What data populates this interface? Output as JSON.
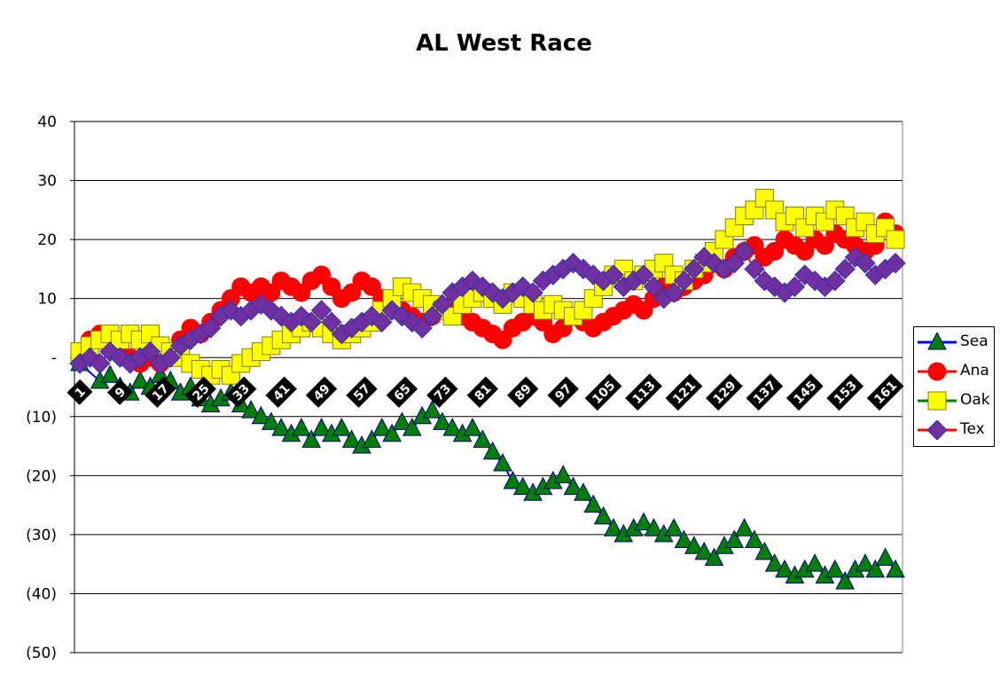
{
  "chart_data": {
    "type": "line",
    "title": "AL West Race",
    "xlabel": "",
    "ylabel": "",
    "xlim": [
      1,
      163
    ],
    "ylim": [
      -50,
      40
    ],
    "y_ticks": [
      40,
      30,
      20,
      10,
      0,
      -10,
      -20,
      -30,
      -40,
      -50
    ],
    "y_tick_labels": [
      "40",
      "30",
      "20",
      "10",
      "-",
      "(10)",
      "(20)",
      "(30)",
      "(40)",
      "(50)"
    ],
    "x_tick_labels": [
      "1",
      "9",
      "17",
      "25",
      "33",
      "41",
      "49",
      "57",
      "65",
      "73",
      "81",
      "89",
      "97",
      "105",
      "113",
      "121",
      "129",
      "137",
      "145",
      "153",
      "161"
    ],
    "x_tick_values": [
      1,
      9,
      17,
      25,
      33,
      41,
      49,
      57,
      65,
      73,
      81,
      89,
      97,
      105,
      113,
      121,
      129,
      137,
      145,
      153,
      161
    ],
    "grid": true,
    "legend_position": "right",
    "series": [
      {
        "name": "Sea",
        "line_color": "#0000ff",
        "marker": "triangle",
        "marker_fill": "#008000",
        "marker_stroke": "#000080",
        "x": [
          1,
          5,
          7,
          9,
          11,
          13,
          15,
          17,
          19,
          21,
          23,
          25,
          27,
          29,
          31,
          33,
          35,
          37,
          39,
          41,
          43,
          45,
          47,
          49,
          51,
          53,
          55,
          57,
          59,
          61,
          63,
          65,
          67,
          69,
          71,
          73,
          75,
          77,
          79,
          81,
          83,
          85,
          87,
          89,
          91,
          93,
          95,
          97,
          99,
          101,
          103,
          105,
          107,
          109,
          111,
          113,
          115,
          117,
          119,
          121,
          123,
          125,
          127,
          129,
          131,
          133,
          135,
          137,
          139,
          141,
          143,
          145,
          147,
          149,
          151,
          153,
          155,
          157,
          159,
          161,
          163
        ],
        "values": [
          -1,
          -4,
          -3,
          -5,
          -6,
          -4,
          -5,
          -3,
          -4,
          -6,
          -5,
          -7,
          -8,
          -7,
          -6,
          -8,
          -9,
          -10,
          -11,
          -12,
          -13,
          -12,
          -14,
          -12,
          -13,
          -12,
          -14,
          -15,
          -14,
          -12,
          -13,
          -11,
          -12,
          -10,
          -9,
          -11,
          -12,
          -13,
          -12,
          -14,
          -16,
          -18,
          -21,
          -22,
          -23,
          -22,
          -21,
          -20,
          -22,
          -23,
          -25,
          -27,
          -29,
          -30,
          -29,
          -28,
          -29,
          -30,
          -29,
          -31,
          -32,
          -33,
          -34,
          -32,
          -31,
          -29,
          -31,
          -33,
          -35,
          -36,
          -37,
          -36,
          -35,
          -37,
          -36,
          -38,
          -36,
          -35,
          -36,
          -34,
          -36
        ]
      },
      {
        "name": "Ana",
        "line_color": "#ff0000",
        "marker": "circle",
        "marker_fill": "#ff0000",
        "marker_stroke": "#ff0000",
        "x": [
          1,
          3,
          5,
          7,
          9,
          11,
          13,
          15,
          17,
          19,
          21,
          23,
          25,
          27,
          29,
          31,
          33,
          35,
          37,
          39,
          41,
          43,
          45,
          47,
          49,
          51,
          53,
          55,
          57,
          59,
          61,
          63,
          65,
          67,
          69,
          71,
          73,
          75,
          77,
          79,
          81,
          83,
          85,
          87,
          89,
          91,
          93,
          95,
          97,
          99,
          101,
          103,
          105,
          107,
          109,
          111,
          113,
          115,
          117,
          119,
          121,
          123,
          125,
          127,
          129,
          131,
          133,
          135,
          137,
          139,
          141,
          143,
          145,
          147,
          149,
          151,
          153,
          155,
          157,
          159,
          161,
          163
        ],
        "values": [
          1,
          3,
          4,
          2,
          1,
          0,
          -1,
          0,
          -1,
          1,
          3,
          5,
          4,
          6,
          8,
          10,
          12,
          11,
          12,
          11,
          13,
          12,
          11,
          13,
          14,
          12,
          10,
          11,
          13,
          12,
          10,
          9,
          8,
          7,
          6,
          7,
          8,
          9,
          7,
          6,
          5,
          4,
          3,
          5,
          6,
          7,
          6,
          4,
          5,
          7,
          6,
          5,
          6,
          7,
          8,
          9,
          8,
          10,
          12,
          11,
          12,
          13,
          14,
          16,
          15,
          17,
          18,
          19,
          17,
          18,
          20,
          19,
          18,
          20,
          19,
          21,
          20,
          19,
          18,
          19,
          23,
          21
        ]
      },
      {
        "name": "Oak",
        "line_color": "#008000",
        "marker": "square",
        "marker_fill": "#ffff00",
        "marker_stroke": "#808000",
        "x": [
          1,
          3,
          5,
          7,
          9,
          11,
          13,
          15,
          17,
          19,
          21,
          23,
          25,
          27,
          29,
          31,
          33,
          35,
          37,
          39,
          41,
          43,
          45,
          47,
          49,
          51,
          53,
          55,
          57,
          59,
          61,
          63,
          65,
          67,
          69,
          71,
          73,
          75,
          77,
          79,
          81,
          83,
          85,
          87,
          89,
          91,
          93,
          95,
          97,
          99,
          101,
          103,
          105,
          107,
          109,
          111,
          113,
          115,
          117,
          119,
          121,
          123,
          125,
          127,
          129,
          131,
          133,
          135,
          137,
          139,
          141,
          143,
          145,
          147,
          149,
          151,
          153,
          155,
          157,
          159,
          161,
          163
        ],
        "values": [
          1,
          2,
          3,
          4,
          3,
          4,
          3,
          4,
          2,
          1,
          0,
          -1,
          -2,
          -3,
          -2,
          -3,
          -1,
          0,
          1,
          2,
          3,
          4,
          5,
          6,
          5,
          4,
          3,
          4,
          5,
          6,
          8,
          10,
          12,
          11,
          10,
          9,
          8,
          7,
          9,
          10,
          11,
          10,
          9,
          11,
          10,
          9,
          8,
          9,
          8,
          7,
          8,
          10,
          12,
          14,
          15,
          13,
          14,
          15,
          16,
          14,
          13,
          15,
          16,
          18,
          20,
          22,
          24,
          25,
          27,
          25,
          23,
          24,
          22,
          24,
          23,
          25,
          24,
          22,
          23,
          21,
          22,
          20
        ]
      },
      {
        "name": "Tex",
        "line_color": "#ff0000",
        "marker": "diamond",
        "marker_fill": "#7030a0",
        "marker_stroke": "#3030b0",
        "x": [
          1,
          3,
          5,
          7,
          9,
          11,
          13,
          15,
          17,
          19,
          21,
          23,
          25,
          27,
          29,
          31,
          33,
          35,
          37,
          39,
          41,
          43,
          45,
          47,
          49,
          51,
          53,
          55,
          57,
          59,
          61,
          63,
          65,
          67,
          69,
          71,
          73,
          75,
          77,
          79,
          81,
          83,
          85,
          87,
          89,
          91,
          93,
          95,
          97,
          99,
          101,
          103,
          105,
          107,
          109,
          111,
          113,
          115,
          117,
          119,
          121,
          123,
          125,
          127,
          129,
          131,
          133,
          135,
          137,
          139,
          141,
          143,
          145,
          147,
          149,
          151,
          153,
          155,
          157,
          159,
          161,
          163
        ],
        "values": [
          -1,
          0,
          -1,
          1,
          0,
          -1,
          0,
          1,
          -1,
          0,
          2,
          3,
          4,
          5,
          7,
          8,
          7,
          8,
          9,
          8,
          7,
          6,
          7,
          6,
          8,
          6,
          4,
          5,
          6,
          7,
          6,
          8,
          7,
          6,
          5,
          7,
          9,
          11,
          12,
          13,
          12,
          11,
          10,
          11,
          12,
          11,
          13,
          14,
          15,
          16,
          15,
          14,
          13,
          14,
          12,
          13,
          14,
          12,
          10,
          11,
          13,
          15,
          17,
          16,
          15,
          16,
          18,
          15,
          13,
          12,
          11,
          12,
          14,
          13,
          12,
          13,
          15,
          17,
          16,
          14,
          15,
          16
        ]
      }
    ]
  }
}
